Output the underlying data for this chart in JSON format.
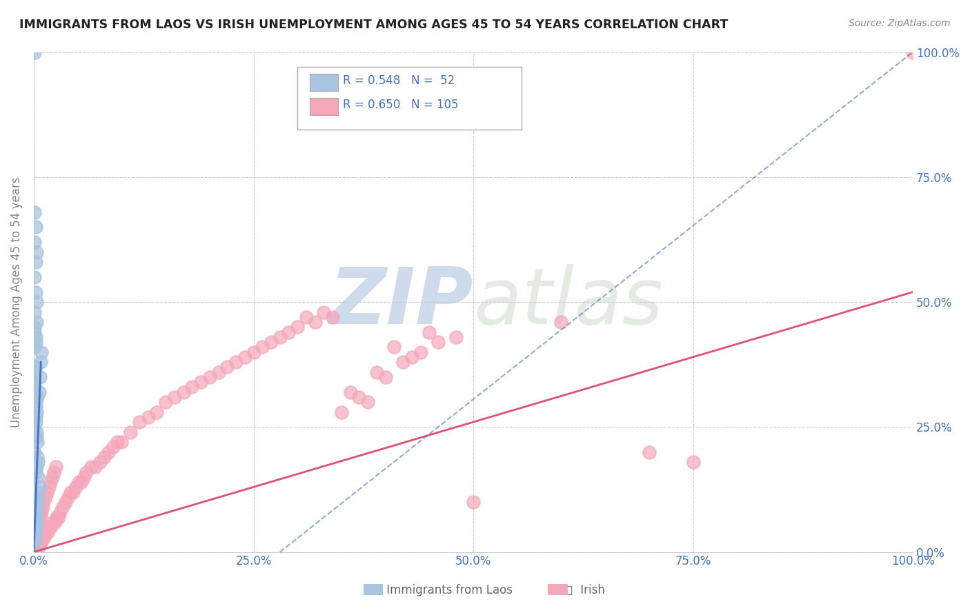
{
  "title": "IMMIGRANTS FROM LAOS VS IRISH UNEMPLOYMENT AMONG AGES 45 TO 54 YEARS CORRELATION CHART",
  "source": "Source: ZipAtlas.com",
  "ylabel": "Unemployment Among Ages 45 to 54 years",
  "xlim": [
    0,
    1.0
  ],
  "ylim": [
    0,
    1.0
  ],
  "xtick_vals": [
    0.0,
    0.25,
    0.5,
    0.75,
    1.0
  ],
  "xtick_labels": [
    "0.0%",
    "25.0%",
    "50.0%",
    "75.0%",
    "100.0%"
  ],
  "ytick_vals": [
    0.0,
    0.25,
    0.5,
    0.75,
    1.0
  ],
  "ytick_labels": [
    "0.0%",
    "25.0%",
    "50.0%",
    "75.0%",
    "100.0%"
  ],
  "right_ytick_labels": [
    "0.0%",
    "25.0%",
    "50.0%",
    "75.0%",
    "100.0%"
  ],
  "watermark": "ZIPatlas",
  "laos_color": "#a8c4e0",
  "laos_edge": "#7aafd0",
  "laos_line_color": "#4472c4",
  "laos_R": 0.548,
  "laos_N": 52,
  "laos_scatter_x": [
    0.001,
    0.002,
    0.002,
    0.003,
    0.003,
    0.004,
    0.004,
    0.005,
    0.005,
    0.006,
    0.001,
    0.001,
    0.002,
    0.003,
    0.004,
    0.005,
    0.006,
    0.007,
    0.008,
    0.009,
    0.001,
    0.002,
    0.003,
    0.001,
    0.002,
    0.003,
    0.004,
    0.001,
    0.002,
    0.003,
    0.001,
    0.002,
    0.001,
    0.002,
    0.001,
    0.001,
    0.002,
    0.003,
    0.004,
    0.002,
    0.003,
    0.002,
    0.001,
    0.003,
    0.002,
    0.001,
    0.002,
    0.003,
    0.001,
    0.002,
    0.001,
    0.001
  ],
  "laos_scatter_y": [
    0.03,
    0.05,
    0.08,
    0.06,
    0.1,
    0.09,
    0.12,
    0.11,
    0.15,
    0.13,
    0.2,
    0.25,
    0.3,
    0.28,
    0.22,
    0.18,
    0.32,
    0.35,
    0.38,
    0.4,
    0.02,
    0.04,
    0.07,
    0.33,
    0.27,
    0.24,
    0.31,
    0.36,
    0.26,
    0.23,
    0.34,
    0.37,
    0.41,
    0.43,
    0.44,
    0.45,
    0.16,
    0.17,
    0.19,
    0.42,
    0.46,
    0.29,
    0.48,
    0.5,
    0.52,
    0.55,
    0.58,
    0.6,
    0.62,
    0.65,
    0.68,
    1.0
  ],
  "laos_solid_line_x": [
    0.0,
    0.008
  ],
  "laos_solid_line_y": [
    0.0,
    0.38
  ],
  "laos_dashed_line_x": [
    0.28,
    1.0
  ],
  "laos_dashed_line_y": [
    0.0,
    1.0
  ],
  "irish_color": "#f4a7b9",
  "irish_edge": "#e890a8",
  "irish_line_color": "#e05070",
  "irish_R": 0.65,
  "irish_N": 105,
  "irish_scatter_x": [
    0.001,
    0.002,
    0.003,
    0.004,
    0.005,
    0.006,
    0.007,
    0.008,
    0.009,
    0.01,
    0.012,
    0.014,
    0.016,
    0.018,
    0.02,
    0.022,
    0.024,
    0.026,
    0.028,
    0.03,
    0.033,
    0.036,
    0.039,
    0.042,
    0.045,
    0.048,
    0.051,
    0.054,
    0.057,
    0.06,
    0.065,
    0.07,
    0.075,
    0.08,
    0.085,
    0.09,
    0.095,
    0.1,
    0.11,
    0.12,
    0.13,
    0.14,
    0.15,
    0.16,
    0.17,
    0.18,
    0.19,
    0.2,
    0.21,
    0.22,
    0.23,
    0.24,
    0.25,
    0.26,
    0.27,
    0.28,
    0.29,
    0.3,
    0.32,
    0.34,
    0.36,
    0.38,
    0.4,
    0.42,
    0.44,
    0.46,
    0.48,
    0.35,
    0.37,
    0.39,
    0.31,
    0.33,
    0.41,
    0.43,
    0.45,
    0.5,
    0.001,
    0.001,
    0.002,
    0.002,
    0.003,
    0.003,
    0.004,
    0.004,
    0.005,
    0.005,
    0.006,
    0.006,
    0.007,
    0.007,
    0.008,
    0.009,
    0.01,
    0.011,
    0.013,
    0.015,
    0.017,
    0.019,
    0.021,
    0.023,
    0.6,
    0.7,
    0.75,
    1.0,
    0.025
  ],
  "irish_scatter_y": [
    0.01,
    0.01,
    0.02,
    0.01,
    0.02,
    0.01,
    0.02,
    0.03,
    0.02,
    0.03,
    0.03,
    0.04,
    0.04,
    0.05,
    0.05,
    0.06,
    0.06,
    0.07,
    0.07,
    0.08,
    0.09,
    0.1,
    0.11,
    0.12,
    0.12,
    0.13,
    0.14,
    0.14,
    0.15,
    0.16,
    0.17,
    0.17,
    0.18,
    0.19,
    0.2,
    0.21,
    0.22,
    0.22,
    0.24,
    0.26,
    0.27,
    0.28,
    0.3,
    0.31,
    0.32,
    0.33,
    0.34,
    0.35,
    0.36,
    0.37,
    0.38,
    0.39,
    0.4,
    0.41,
    0.42,
    0.43,
    0.44,
    0.45,
    0.46,
    0.47,
    0.32,
    0.3,
    0.35,
    0.38,
    0.4,
    0.42,
    0.43,
    0.28,
    0.31,
    0.36,
    0.47,
    0.48,
    0.41,
    0.39,
    0.44,
    0.1,
    0.02,
    0.03,
    0.01,
    0.04,
    0.02,
    0.05,
    0.03,
    0.06,
    0.04,
    0.07,
    0.05,
    0.08,
    0.06,
    0.09,
    0.07,
    0.08,
    0.09,
    0.1,
    0.11,
    0.12,
    0.13,
    0.14,
    0.15,
    0.16,
    0.46,
    0.2,
    0.18,
    1.0,
    0.17
  ],
  "irish_line_x": [
    0.0,
    1.0
  ],
  "irish_line_y": [
    0.0,
    0.52
  ],
  "legend_color": "#4472c4",
  "axis_label_color": "#4472c4",
  "title_color": "#222222",
  "source_color": "#888888",
  "grid_color": "#cccccc",
  "watermark_color": "#c8d8ec",
  "background_color": "#ffffff"
}
